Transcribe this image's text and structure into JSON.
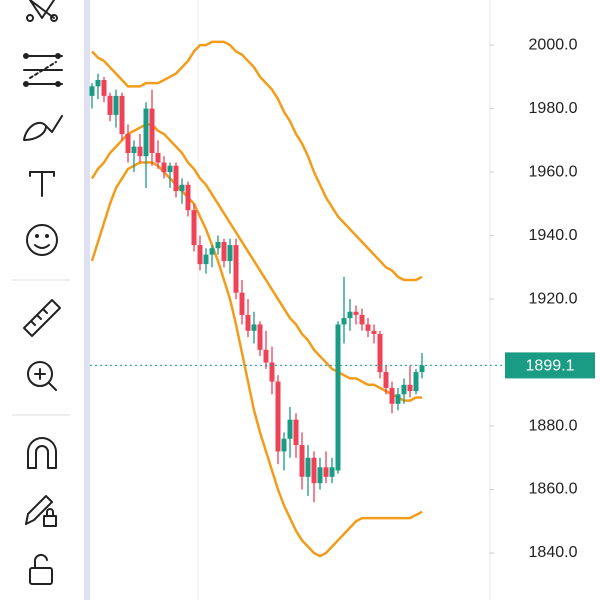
{
  "chart_data": {
    "type": "candlestick",
    "ylim": [
      1825.2,
      2014.2
    ],
    "yticks": [
      {
        "value": 1840,
        "label": "1840.0"
      },
      {
        "value": 1860,
        "label": "1860.0"
      },
      {
        "value": 1880,
        "label": "1880.0"
      },
      {
        "value": 1920,
        "label": "1920.0"
      },
      {
        "value": 1940,
        "label": "1940.0"
      },
      {
        "value": 1960,
        "label": "1960.0"
      },
      {
        "value": 1980,
        "label": "1980.0"
      },
      {
        "value": 2000,
        "label": "2000.0"
      }
    ],
    "last_price": 1899.1,
    "up_color": "#1a9c84",
    "down_color": "#ef4257",
    "open": [
      1984,
      1987,
      1989,
      1984,
      1978,
      1984,
      1972,
      1966,
      1968,
      1965,
      1980,
      1966,
      1963,
      1960,
      1962,
      1954,
      1956,
      1948,
      1937,
      1931,
      1934,
      1936,
      1938,
      1932,
      1937,
      1922,
      1915,
      1910,
      1912,
      1904,
      1900,
      1894,
      1872,
      1876,
      1882,
      1874,
      1864,
      1870,
      1862,
      1867,
      1864,
      1866,
      1912,
      1914,
      1916,
      1915,
      1912,
      1910,
      1909,
      1897,
      1892,
      1887,
      1890,
      1893,
      1891,
      1897
    ],
    "high": [
      1988,
      1991,
      1990,
      1985,
      1986,
      1985,
      1975,
      1970,
      1972,
      1982,
      1986,
      1970,
      1965,
      1963,
      1963,
      1958,
      1957,
      1950,
      1940,
      1936,
      1937,
      1940,
      1939,
      1939,
      1939,
      1926,
      1920,
      1916,
      1913,
      1910,
      1905,
      1896,
      1878,
      1886,
      1884,
      1878,
      1874,
      1872,
      1870,
      1872,
      1870,
      1913,
      1927,
      1920,
      1918,
      1917,
      1914,
      1912,
      1910,
      1899,
      1894,
      1892,
      1895,
      1899,
      1898,
      1903
    ],
    "low": [
      1980,
      1983,
      1982,
      1976,
      1974,
      1970,
      1963,
      1960,
      1963,
      1955,
      1962,
      1961,
      1958,
      1955,
      1952,
      1950,
      1946,
      1935,
      1929,
      1928,
      1930,
      1934,
      1930,
      1928,
      1920,
      1912,
      1908,
      1906,
      1902,
      1898,
      1890,
      1868,
      1866,
      1870,
      1870,
      1860,
      1858,
      1856,
      1860,
      1862,
      1862,
      1865,
      1906,
      1910,
      1912,
      1910,
      1908,
      1906,
      1895,
      1890,
      1884,
      1885,
      1887,
      1889,
      1890,
      1895
    ],
    "close": [
      1987,
      1989,
      1984,
      1978,
      1984,
      1972,
      1966,
      1968,
      1965,
      1980,
      1966,
      1963,
      1960,
      1962,
      1954,
      1956,
      1948,
      1937,
      1931,
      1934,
      1936,
      1938,
      1932,
      1937,
      1922,
      1915,
      1910,
      1912,
      1904,
      1900,
      1894,
      1872,
      1876,
      1882,
      1874,
      1864,
      1870,
      1862,
      1867,
      1864,
      1867,
      1912,
      1914,
      1916,
      1915,
      1912,
      1910,
      1909,
      1897,
      1892,
      1887,
      1890,
      1893,
      1891,
      1897,
      1899.1
    ],
    "bands": [
      {
        "color": "#f39c1a",
        "values": [
          1998,
          1996,
          1995,
          1993,
          1991,
          1989,
          1987,
          1987,
          1987,
          1988,
          1988,
          1988,
          1989,
          1990,
          1991,
          1993,
          1995,
          1998,
          2000,
          2000,
          2001,
          2001,
          2001,
          2000,
          1998,
          1997,
          1995,
          1993,
          1990,
          1988,
          1986,
          1983,
          1979,
          1976,
          1972,
          1969,
          1965,
          1960,
          1956,
          1952,
          1949,
          1946,
          1944,
          1942,
          1940,
          1938,
          1936,
          1934,
          1932,
          1930,
          1929,
          1927,
          1926,
          1926,
          1926,
          1927
        ]
      },
      {
        "color": "#f39c1a",
        "values": [
          1958,
          1961,
          1963,
          1966,
          1968,
          1970,
          1972,
          1973,
          1974,
          1975,
          1975,
          1973,
          1972,
          1970,
          1968,
          1966,
          1963,
          1961,
          1958,
          1956,
          1953,
          1950,
          1947,
          1944,
          1941,
          1938,
          1935,
          1932,
          1929,
          1926,
          1923,
          1920,
          1917,
          1914,
          1912,
          1909,
          1907,
          1904,
          1902,
          1900,
          1898,
          1897,
          1896,
          1895,
          1895,
          1894,
          1893,
          1893,
          1892,
          1891,
          1890,
          1889,
          1888,
          1888,
          1889,
          1889
        ]
      },
      {
        "color": "#f39c1a",
        "values": [
          1932,
          1938,
          1944,
          1950,
          1955,
          1958,
          1961,
          1962,
          1963,
          1963,
          1963,
          1962,
          1960,
          1958,
          1956,
          1954,
          1952,
          1950,
          1946,
          1942,
          1937,
          1932,
          1926,
          1920,
          1912,
          1903,
          1894,
          1885,
          1878,
          1872,
          1866,
          1860,
          1855,
          1851,
          1847,
          1844,
          1842,
          1840,
          1839,
          1840,
          1842,
          1844,
          1846,
          1848,
          1850,
          1851,
          1851,
          1851,
          1851,
          1851,
          1851,
          1851,
          1851,
          1851,
          1852,
          1853
        ]
      }
    ]
  }
}
